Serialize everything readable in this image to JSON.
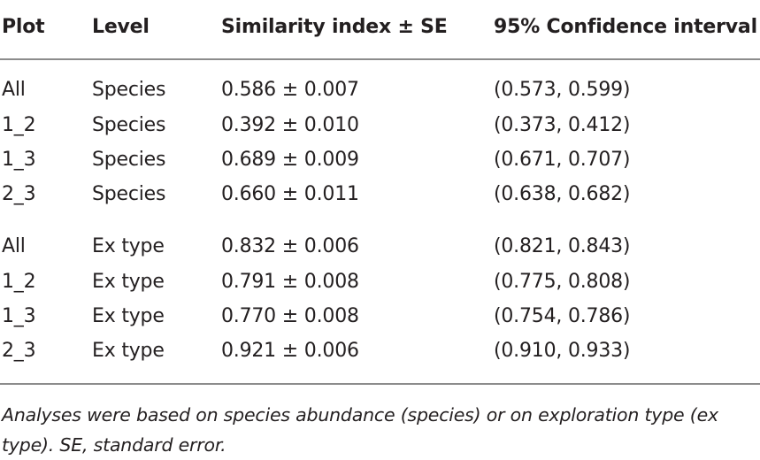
{
  "columns": {
    "plot": "Plot",
    "level": "Level",
    "similarity": "Similarity index ± SE",
    "ci": "95% Confidence interval"
  },
  "rows": [
    {
      "plot": "All",
      "level": "Species",
      "similarity": "0.586 ± 0.007",
      "ci": "(0.573, 0.599)"
    },
    {
      "plot": "1_2",
      "level": "Species",
      "similarity": "0.392 ± 0.010",
      "ci": "(0.373, 0.412)"
    },
    {
      "plot": "1_3",
      "level": "Species",
      "similarity": "0.689 ± 0.009",
      "ci": "(0.671, 0.707)"
    },
    {
      "plot": "2_3",
      "level": "Species",
      "similarity": "0.660 ± 0.011",
      "ci": "(0.638, 0.682)"
    },
    {
      "plot": "All",
      "level": "Ex type",
      "similarity": "0.832 ± 0.006",
      "ci": "(0.821, 0.843)"
    },
    {
      "plot": "1_2",
      "level": "Ex type",
      "similarity": "0.791 ± 0.008",
      "ci": "(0.775, 0.808)"
    },
    {
      "plot": "1_3",
      "level": "Ex type",
      "similarity": "0.770 ± 0.008",
      "ci": "(0.754, 0.786)"
    },
    {
      "plot": "2_3",
      "level": "Ex type",
      "similarity": "0.921 ± 0.006",
      "ci": "(0.910, 0.933)"
    }
  ],
  "footnote": "Analyses were based on species abundance (species) or on exploration type (ex type). SE, standard error."
}
